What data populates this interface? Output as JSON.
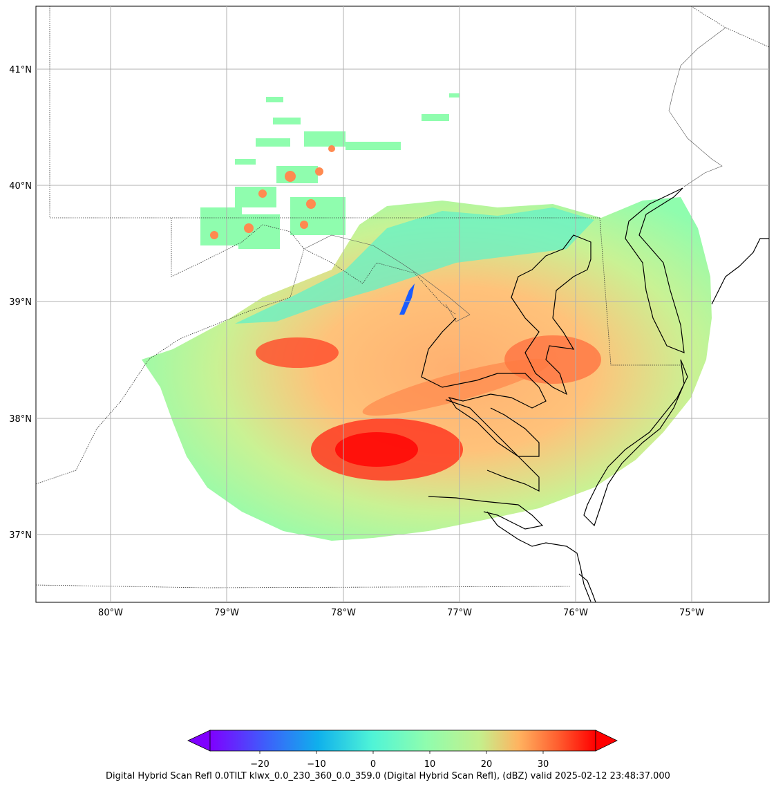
{
  "map": {
    "lon_labels": [
      "80°W",
      "79°W",
      "78°W",
      "77°W",
      "76°W",
      "75°W"
    ],
    "lat_labels": [
      "41°N",
      "40°N",
      "39°N",
      "38°N",
      "37°N"
    ],
    "gridlines": true,
    "colors": {
      "gridline": "#b0b0b0",
      "coastline": "#000000",
      "state_border": "#333333"
    }
  },
  "colorbar": {
    "tick_labels": [
      "−20",
      "−10",
      "0",
      "10",
      "20",
      "30"
    ],
    "range_dbz": [
      -30,
      40
    ],
    "extend": "both",
    "colormap": "rainbow",
    "colors": [
      "#7f00ff",
      "#2e7ef7",
      "#1cb6e8",
      "#4ff4d7",
      "#80ffb4",
      "#b2f396",
      "#ffb360",
      "#ff5a30",
      "#ff0000"
    ]
  },
  "caption": "Digital Hybrid Scan Refl 0.0TILT klwx_0.0_230_360_0.0_359.0 (Digital Hybrid Scan Refl), (dBZ) valid 2025-02-12 23:48:37.000"
}
